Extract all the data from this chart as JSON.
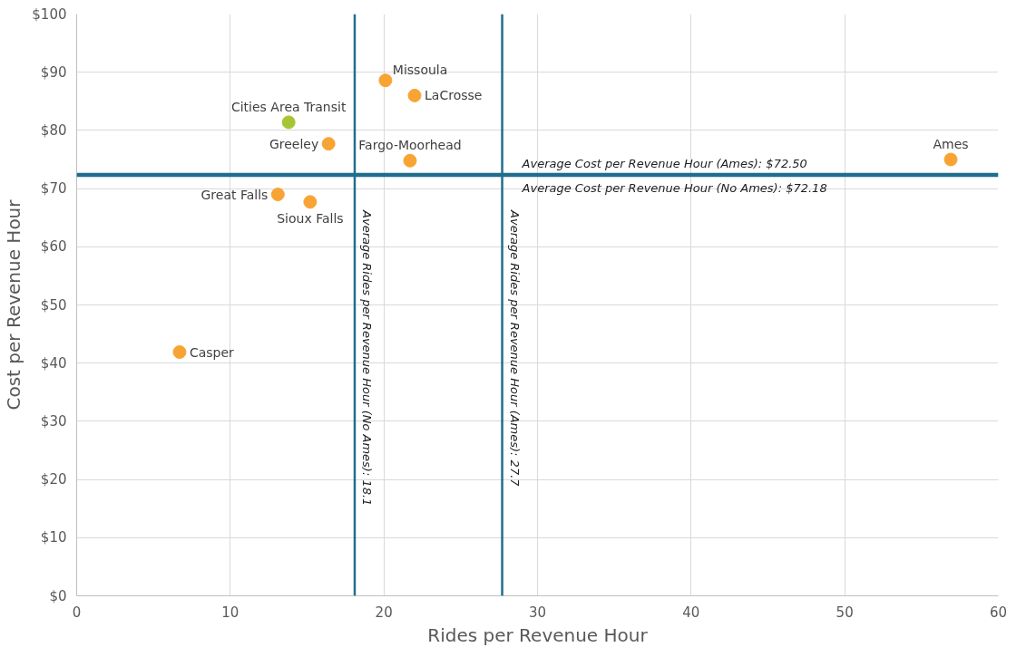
{
  "chart_data": {
    "type": "scatter",
    "xlabel": "Rides per Revenue Hour",
    "ylabel": "Cost per Revenue Hour",
    "xlim": [
      0,
      60
    ],
    "xticks": [
      0,
      10,
      20,
      30,
      40,
      50,
      60
    ],
    "ylim": [
      0,
      100
    ],
    "yticks": [
      {
        "value": 0,
        "label": "$0"
      },
      {
        "value": 10,
        "label": "$10"
      },
      {
        "value": 20,
        "label": "$20"
      },
      {
        "value": 30,
        "label": "$30"
      },
      {
        "value": 40,
        "label": "$40"
      },
      {
        "value": 50,
        "label": "$50"
      },
      {
        "value": 60,
        "label": "$60"
      },
      {
        "value": 70,
        "label": "$70"
      },
      {
        "value": 80,
        "label": "$80"
      },
      {
        "value": 90,
        "label": "$90"
      },
      {
        "value": 100,
        "label": "$100"
      }
    ],
    "grid": true,
    "marker": "circle",
    "series": [
      {
        "x": [
          6.7,
          13.1,
          15.2,
          13.8,
          16.4,
          20.1,
          22.0,
          21.7,
          56.9
        ],
        "values": [
          41.9,
          69.0,
          67.7,
          81.4,
          77.7,
          88.6,
          86.0,
          74.8,
          75.0
        ],
        "colors": [
          "#f8a434",
          "#f8a434",
          "#f8a434",
          "#a5c632",
          "#f8a434",
          "#f8a434",
          "#f8a434",
          "#f8a434",
          "#f8a434"
        ]
      }
    ],
    "annotations": [
      {
        "text": "Casper",
        "x": 6.7,
        "y": 41.9
      },
      {
        "text": "Great Falls",
        "x": 13.1,
        "y": 69.0
      },
      {
        "text": "Sioux Falls",
        "x": 15.2,
        "y": 67.7
      },
      {
        "text": "Cities Area Transit",
        "x": 13.8,
        "y": 81.4
      },
      {
        "text": "Greeley",
        "x": 16.4,
        "y": 77.7
      },
      {
        "text": "Missoula",
        "x": 20.1,
        "y": 88.6
      },
      {
        "text": "LaCrosse",
        "x": 22.0,
        "y": 86.0
      },
      {
        "text": "Fargo-Moorhead",
        "x": 21.7,
        "y": 74.8
      },
      {
        "text": "Ames",
        "x": 56.9,
        "y": 75.0
      }
    ],
    "ref_lines": [
      {
        "axis": "x",
        "value": 18.1,
        "label": "Average Rides per Revenue Hour (No Ames): 18.1",
        "color": "#1f6e8c"
      },
      {
        "axis": "x",
        "value": 27.7,
        "label": "Average Rides per Revenue Hour (Ames): 27.7",
        "color": "#1f6e8c"
      },
      {
        "axis": "y",
        "value": 72.5,
        "label": "Average Cost per Revenue Hour (Ames): $72.50",
        "color": "#1f6e8c"
      },
      {
        "axis": "y",
        "value": 72.18,
        "label": "Average Cost per Revenue Hour (No Ames): $72.18",
        "color": "#1f6e8c"
      }
    ]
  }
}
